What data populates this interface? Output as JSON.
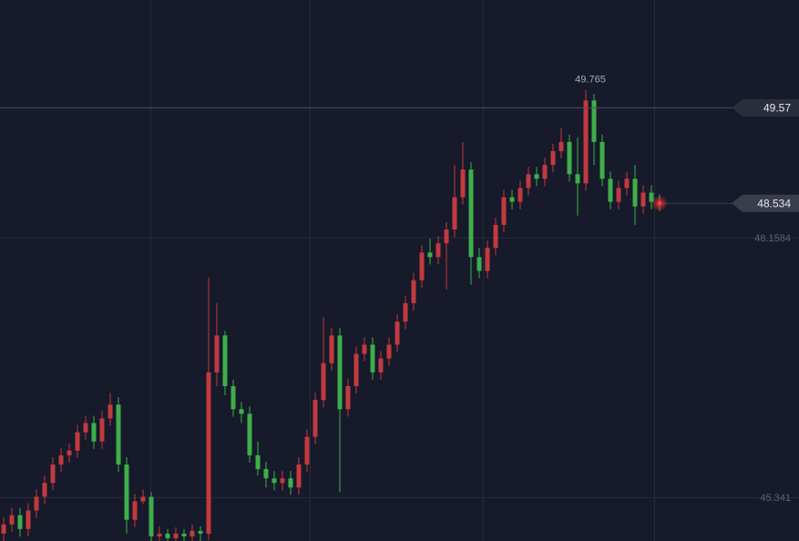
{
  "chart_data": {
    "type": "candlestick",
    "open": [
      44.95,
      45.05,
      45.15,
      45.0,
      45.2,
      45.35,
      45.5,
      45.7,
      45.8,
      45.85,
      46.05,
      46.15,
      45.95,
      46.2,
      46.35,
      45.7,
      45.1,
      45.3,
      45.35,
      44.92,
      44.95,
      44.9,
      44.95,
      44.92,
      44.98,
      44.95,
      46.7,
      47.1,
      46.55,
      46.3,
      46.25,
      45.8,
      45.65,
      45.55,
      45.5,
      45.55,
      45.45,
      45.7,
      46.0,
      46.4,
      46.8,
      47.1,
      46.3,
      46.55,
      46.9,
      47.0,
      46.7,
      46.85,
      47.0,
      47.25,
      47.45,
      47.7,
      48.0,
      47.95,
      48.1,
      48.25,
      48.6,
      48.9,
      47.95,
      47.8,
      48.05,
      48.3,
      48.6,
      48.55,
      48.7,
      48.85,
      48.8,
      48.95,
      49.1,
      49.2,
      48.85,
      48.75,
      49.65,
      49.2,
      48.8,
      48.55,
      48.7,
      48.8,
      48.5,
      48.65,
      48.55
    ],
    "high": [
      45.13,
      45.23,
      45.23,
      45.28,
      45.43,
      45.58,
      45.78,
      45.88,
      45.93,
      46.13,
      46.23,
      46.23,
      46.28,
      46.48,
      46.43,
      45.78,
      45.38,
      45.43,
      45.4,
      45.03,
      45.0,
      45.02,
      45.0,
      45.05,
      45.03,
      47.73,
      47.45,
      47.15,
      46.62,
      46.38,
      46.33,
      45.95,
      45.73,
      45.63,
      45.63,
      45.63,
      45.78,
      46.08,
      46.48,
      47.3,
      47.18,
      47.18,
      46.63,
      46.98,
      47.08,
      47.08,
      46.93,
      47.08,
      47.33,
      47.53,
      47.78,
      48.08,
      48.15,
      48.18,
      48.33,
      48.95,
      49.2,
      48.98,
      48.05,
      48.13,
      48.38,
      48.68,
      48.68,
      48.78,
      48.93,
      48.93,
      49.03,
      49.18,
      49.35,
      49.28,
      49.25,
      49.765,
      49.72,
      49.28,
      48.88,
      48.78,
      48.88,
      48.95,
      48.73,
      48.73,
      48.63
    ],
    "low": [
      44.87,
      44.97,
      44.92,
      44.92,
      45.12,
      45.27,
      45.42,
      45.62,
      45.72,
      45.77,
      45.97,
      45.87,
      45.87,
      46.12,
      45.62,
      44.95,
      45.02,
      45.27,
      44.85,
      44.85,
      44.85,
      44.85,
      44.85,
      44.85,
      44.85,
      44.88,
      46.55,
      46.45,
      46.22,
      46.15,
      45.72,
      45.58,
      45.45,
      45.42,
      45.42,
      45.37,
      45.37,
      45.62,
      45.92,
      46.32,
      46.72,
      45.4,
      46.22,
      46.47,
      46.82,
      46.62,
      46.62,
      46.77,
      46.92,
      47.17,
      47.37,
      47.62,
      47.87,
      47.87,
      47.6,
      48.17,
      48.52,
      47.65,
      47.72,
      47.72,
      47.97,
      48.22,
      48.47,
      48.47,
      48.62,
      48.72,
      48.72,
      48.87,
      49.02,
      48.77,
      48.4,
      48.67,
      48.95,
      48.72,
      48.47,
      48.47,
      48.62,
      48.3,
      48.42,
      48.47,
      48.45
    ],
    "close": [
      45.05,
      45.15,
      45.0,
      45.2,
      45.35,
      45.5,
      45.7,
      45.8,
      45.85,
      46.05,
      46.15,
      45.95,
      46.2,
      46.35,
      45.7,
      45.1,
      45.3,
      45.35,
      44.92,
      44.95,
      44.9,
      44.95,
      44.92,
      44.98,
      44.95,
      46.7,
      47.1,
      46.55,
      46.3,
      46.25,
      45.8,
      45.65,
      45.55,
      45.5,
      45.55,
      45.45,
      45.7,
      46.0,
      46.4,
      46.8,
      47.1,
      46.3,
      46.55,
      46.9,
      47.0,
      46.7,
      46.85,
      47.0,
      47.25,
      47.45,
      47.7,
      48.0,
      47.95,
      48.1,
      48.25,
      48.6,
      48.9,
      47.95,
      47.8,
      48.05,
      48.3,
      48.6,
      48.55,
      48.7,
      48.85,
      48.8,
      48.95,
      49.1,
      49.2,
      48.85,
      48.75,
      49.65,
      49.2,
      48.8,
      48.55,
      48.7,
      48.8,
      48.5,
      48.65,
      48.55,
      48.534
    ],
    "up_color": "#c23a3f",
    "down_color": "#3fae4a",
    "ylim": [
      44.87,
      50.74
    ],
    "yticks": [
      48.1584,
      45.341
    ],
    "price_line": 49.57,
    "grid": true
  }
}
